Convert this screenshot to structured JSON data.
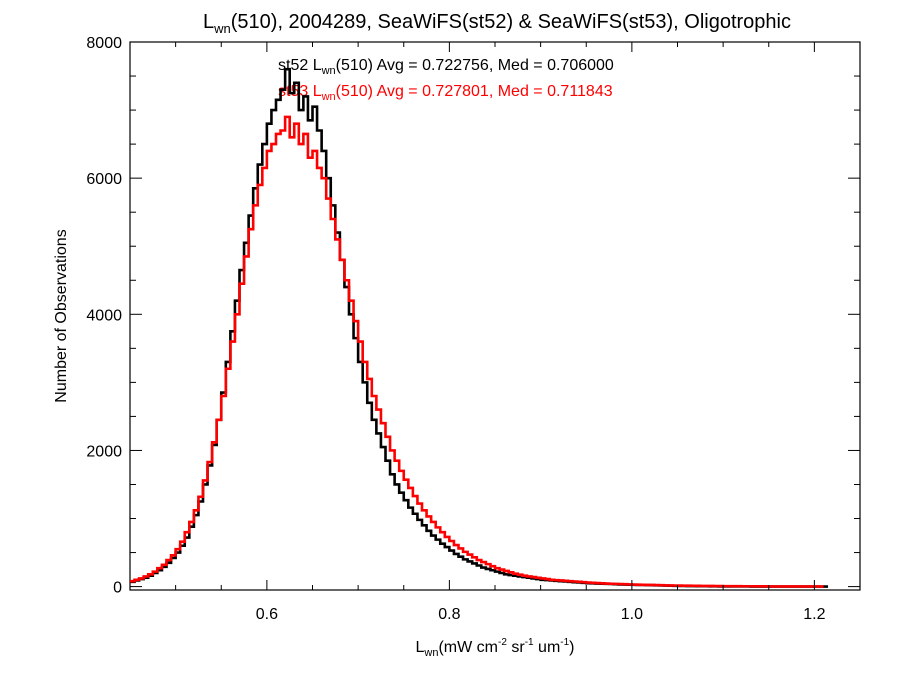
{
  "chart_data": {
    "type": "step-histogram",
    "title": {
      "prefix": "L",
      "prefix_sub": "wn",
      "rest": "(510), 2004289, SeaWiFS(st52) & SeaWiFS(st53), Oligotrophic"
    },
    "xlabel": {
      "base": "L",
      "base_sub": "wn",
      "units": "(mW cm",
      "sup1": "-2",
      "mid": " sr",
      "sup2": "-1",
      "tail": " um",
      "sup3": "-1",
      "close": ")"
    },
    "ylabel": "Number of Observations",
    "xlim": [
      0.45,
      1.25
    ],
    "ylim": [
      -50,
      8000
    ],
    "xticks": [
      {
        "value": 0.6,
        "label": "0.6"
      },
      {
        "value": 0.8,
        "label": "0.8"
      },
      {
        "value": 1.0,
        "label": "1.0"
      },
      {
        "value": 1.2,
        "label": "1.2"
      }
    ],
    "yticks": [
      {
        "value": 0,
        "label": "0"
      },
      {
        "value": 2000,
        "label": "2000"
      },
      {
        "value": 4000,
        "label": "4000"
      },
      {
        "value": 6000,
        "label": "6000"
      },
      {
        "value": 8000,
        "label": "8000"
      }
    ],
    "bin_width": 0.005,
    "series": [
      {
        "name": "st52",
        "color": "#000000",
        "annotation": {
          "prefix": "st52 L",
          "sub": "wn",
          "rest": "(510) Avg = 0.722756, Med = 0.706000"
        },
        "values": [
          70,
          90,
          110,
          130,
          160,
          200,
          240,
          290,
          350,
          420,
          500,
          600,
          720,
          880,
          1050,
          1250,
          1500,
          1780,
          2080,
          2450,
          2850,
          3300,
          3750,
          4200,
          4650,
          5050,
          5450,
          5850,
          6200,
          6500,
          6800,
          7000,
          7150,
          7300,
          7600,
          7250,
          7400,
          7000,
          7200,
          6850,
          7050,
          6700,
          6400,
          6000,
          5600,
          5200,
          4800,
          4400,
          4000,
          3650,
          3300,
          3000,
          2700,
          2450,
          2250,
          2050,
          1850,
          1650,
          1500,
          1380,
          1270,
          1160,
          1070,
          980,
          900,
          820,
          750,
          690,
          630,
          580,
          530,
          480,
          440,
          400,
          370,
          340,
          310,
          280,
          260,
          240,
          220,
          200,
          180,
          170,
          160,
          150,
          140,
          130,
          120,
          110,
          100,
          95,
          90,
          85,
          80,
          75,
          70,
          65,
          60,
          55,
          50,
          48,
          45,
          42,
          40,
          38,
          35,
          32,
          30,
          28,
          26,
          25,
          24,
          22,
          20,
          18,
          16,
          15,
          14,
          12,
          10,
          9,
          8,
          7,
          6,
          5,
          5,
          4,
          4,
          3,
          3,
          3,
          2,
          2,
          2,
          2,
          1,
          1,
          1,
          1,
          1,
          1,
          1,
          1,
          1,
          1,
          1,
          1,
          1,
          1,
          1,
          1,
          1
        ]
      },
      {
        "name": "st53",
        "color": "#ff0000",
        "annotation": {
          "prefix": "st53 L",
          "sub": "wn",
          "rest": "(510) Avg = 0.727801, Med = 0.711843"
        },
        "values": [
          80,
          100,
          120,
          150,
          180,
          220,
          270,
          320,
          390,
          460,
          550,
          660,
          800,
          950,
          1120,
          1320,
          1560,
          1830,
          2120,
          2450,
          2800,
          3200,
          3600,
          4000,
          4450,
          4850,
          5250,
          5600,
          5900,
          6150,
          6400,
          6500,
          6650,
          6700,
          6900,
          6600,
          6800,
          6500,
          6650,
          6300,
          6400,
          6150,
          6000,
          5700,
          5400,
          5100,
          4800,
          4500,
          4200,
          3900,
          3600,
          3300,
          3050,
          2800,
          2600,
          2400,
          2200,
          2000,
          1850,
          1700,
          1570,
          1450,
          1330,
          1220,
          1120,
          1030,
          950,
          870,
          800,
          730,
          670,
          610,
          560,
          510,
          470,
          430,
          390,
          360,
          330,
          300,
          270,
          250,
          230,
          210,
          190,
          175,
          160,
          150,
          140,
          130,
          120,
          110,
          100,
          95,
          90,
          85,
          80,
          75,
          70,
          65,
          60,
          55,
          52,
          48,
          45,
          42,
          40,
          38,
          35,
          32,
          30,
          28,
          26,
          25,
          24,
          22,
          20,
          18,
          17,
          16,
          15,
          14,
          13,
          12,
          11,
          10,
          9,
          9,
          8,
          8,
          7,
          7,
          6,
          6,
          5,
          5,
          5,
          4,
          4,
          4,
          3,
          3,
          3,
          3,
          3,
          2,
          2,
          2,
          2,
          2,
          2,
          1
        ]
      }
    ]
  }
}
